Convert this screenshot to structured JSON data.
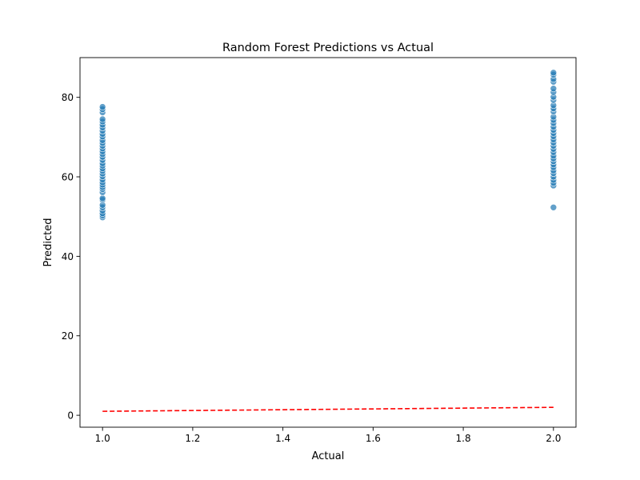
{
  "chart_data": {
    "type": "scatter",
    "title": "Random Forest Predictions vs Actual",
    "xlabel": "Actual",
    "ylabel": "Predicted",
    "xlim": [
      0.95,
      2.05
    ],
    "ylim": [
      -3.0,
      90.0
    ],
    "x_ticks": [
      1.0,
      1.2,
      1.4,
      1.6,
      1.8,
      2.0
    ],
    "x_tick_labels": [
      "1.0",
      "1.2",
      "1.4",
      "1.6",
      "1.8",
      "2.0"
    ],
    "y_ticks": [
      0,
      20,
      40,
      60,
      80
    ],
    "y_tick_labels": [
      "0",
      "20",
      "40",
      "60",
      "80"
    ],
    "grid": false,
    "legend": "none",
    "series": [
      {
        "kind": "points",
        "color": "#1f77b4",
        "points": [
          [
            1.0,
            49.8
          ],
          [
            1.0,
            50.3
          ],
          [
            1.0,
            50.8
          ],
          [
            1.0,
            51.5
          ],
          [
            1.0,
            52.3
          ],
          [
            1.0,
            52.9
          ],
          [
            1.0,
            54.2
          ],
          [
            1.0,
            54.6
          ],
          [
            1.0,
            56.1
          ],
          [
            1.0,
            56.9
          ],
          [
            1.0,
            57.4
          ],
          [
            1.0,
            58.0
          ],
          [
            1.0,
            58.6
          ],
          [
            1.0,
            59.3
          ],
          [
            1.0,
            60.1
          ],
          [
            1.0,
            60.8
          ],
          [
            1.0,
            61.5
          ],
          [
            1.0,
            62.1
          ],
          [
            1.0,
            62.8
          ],
          [
            1.0,
            63.4
          ],
          [
            1.0,
            64.2
          ],
          [
            1.0,
            65.0
          ],
          [
            1.0,
            65.7
          ],
          [
            1.0,
            66.4
          ],
          [
            1.0,
            67.1
          ],
          [
            1.0,
            67.8
          ],
          [
            1.0,
            68.5
          ],
          [
            1.0,
            69.2
          ],
          [
            1.0,
            70.1
          ],
          [
            1.0,
            70.8
          ],
          [
            1.0,
            71.6
          ],
          [
            1.0,
            72.4
          ],
          [
            1.0,
            73.1
          ],
          [
            1.0,
            73.9
          ],
          [
            1.0,
            74.5
          ],
          [
            1.0,
            76.2
          ],
          [
            1.0,
            77.0
          ],
          [
            1.0,
            77.6
          ],
          [
            2.0,
            52.3
          ],
          [
            2.0,
            57.8
          ],
          [
            2.0,
            58.5
          ],
          [
            2.0,
            59.2
          ],
          [
            2.0,
            60.0
          ],
          [
            2.0,
            60.9
          ],
          [
            2.0,
            61.6
          ],
          [
            2.0,
            62.4
          ],
          [
            2.0,
            63.1
          ],
          [
            2.0,
            63.9
          ],
          [
            2.0,
            64.6
          ],
          [
            2.0,
            65.3
          ],
          [
            2.0,
            66.2
          ],
          [
            2.0,
            67.0
          ],
          [
            2.0,
            67.8
          ],
          [
            2.0,
            68.6
          ],
          [
            2.0,
            69.4
          ],
          [
            2.0,
            70.2
          ],
          [
            2.0,
            71.0
          ],
          [
            2.0,
            71.8
          ],
          [
            2.0,
            72.6
          ],
          [
            2.0,
            73.5
          ],
          [
            2.0,
            74.3
          ],
          [
            2.0,
            75.1
          ],
          [
            2.0,
            76.4
          ],
          [
            2.0,
            77.2
          ],
          [
            2.0,
            78.0
          ],
          [
            2.0,
            79.3
          ],
          [
            2.0,
            80.1
          ],
          [
            2.0,
            81.3
          ],
          [
            2.0,
            82.2
          ],
          [
            2.0,
            83.9
          ],
          [
            2.0,
            84.6
          ],
          [
            2.0,
            85.7
          ],
          [
            2.0,
            86.2
          ]
        ]
      },
      {
        "kind": "line",
        "style": "dashed",
        "color": "#ff0000",
        "points": [
          [
            1.0,
            1.0
          ],
          [
            2.0,
            2.0
          ]
        ]
      }
    ]
  }
}
